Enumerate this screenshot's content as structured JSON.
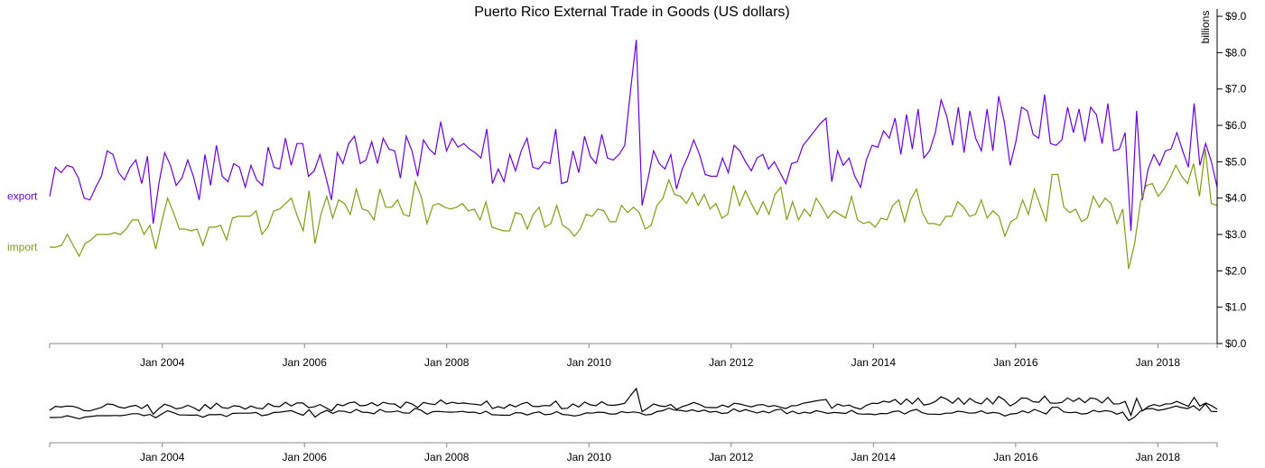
{
  "chart_data": {
    "type": "line",
    "title": "Puerto Rico External Trade in Goods (US dollars)",
    "y_unit_label": "billions",
    "x_start": "2002-06",
    "x_end": "2018-11",
    "xaxis_ticks": [
      "Jan 2004",
      "Jan 2006",
      "Jan 2008",
      "Jan 2010",
      "Jan 2012",
      "Jan 2014",
      "Jan 2016",
      "Jan 2018"
    ],
    "yaxis_ticks": [
      "$0.0",
      "$1.0",
      "$2.0",
      "$3.0",
      "$4.0",
      "$5.0",
      "$6.0",
      "$7.0",
      "$8.0",
      "$9.0"
    ],
    "ylim": [
      0,
      9.2
    ],
    "colors": {
      "export": "#6a00e8",
      "import": "#7e9f14",
      "overview": "#000000"
    },
    "series": [
      {
        "name": "export",
        "values": [
          4.05,
          4.85,
          4.7,
          4.9,
          4.85,
          4.55,
          4.0,
          3.95,
          4.3,
          4.6,
          5.3,
          5.2,
          4.7,
          4.5,
          4.85,
          5.05,
          4.4,
          5.15,
          3.3,
          4.4,
          5.25,
          4.9,
          4.35,
          4.55,
          5.05,
          4.6,
          3.95,
          5.2,
          4.35,
          5.45,
          4.6,
          4.45,
          4.95,
          4.85,
          4.3,
          4.9,
          4.5,
          4.35,
          5.4,
          4.85,
          4.8,
          5.65,
          4.9,
          5.5,
          5.5,
          4.6,
          4.75,
          5.2,
          4.6,
          3.95,
          5.25,
          4.95,
          5.5,
          5.7,
          4.95,
          5.05,
          5.55,
          4.95,
          5.65,
          5.35,
          5.3,
          4.55,
          5.7,
          5.3,
          4.6,
          5.6,
          5.35,
          5.2,
          6.1,
          5.3,
          5.65,
          5.4,
          5.5,
          5.35,
          5.25,
          5.1,
          5.9,
          4.4,
          4.8,
          4.45,
          5.2,
          4.75,
          5.3,
          5.65,
          4.85,
          4.8,
          5.0,
          4.95,
          5.9,
          4.4,
          4.45,
          5.3,
          4.7,
          5.7,
          5.15,
          4.95,
          5.75,
          5.1,
          5.05,
          5.2,
          5.45,
          6.95,
          8.35,
          3.8,
          4.5,
          5.3,
          4.95,
          4.8,
          5.2,
          4.25,
          4.8,
          5.15,
          5.6,
          5.2,
          4.65,
          4.6,
          4.6,
          5.1,
          4.7,
          5.45,
          5.3,
          5.0,
          4.75,
          5.1,
          5.2,
          4.8,
          5.0,
          4.7,
          4.4,
          4.95,
          5.0,
          5.45,
          5.65,
          5.85,
          6.05,
          6.2,
          4.45,
          5.3,
          4.9,
          5.1,
          4.6,
          4.3,
          5.05,
          5.45,
          5.4,
          5.85,
          5.65,
          6.2,
          5.2,
          6.3,
          5.35,
          6.45,
          5.1,
          5.3,
          5.8,
          6.7,
          6.25,
          5.45,
          6.5,
          5.25,
          6.4,
          5.65,
          5.3,
          6.45,
          5.3,
          6.8,
          6.1,
          4.9,
          5.55,
          6.5,
          6.4,
          5.75,
          5.65,
          6.85,
          5.5,
          5.45,
          5.6,
          6.5,
          5.8,
          6.45,
          5.55,
          6.5,
          6.3,
          5.5,
          6.6,
          5.3,
          5.35,
          5.8,
          3.1,
          6.4,
          3.95,
          4.8,
          5.2,
          4.9,
          5.3,
          5.35,
          5.8,
          5.3,
          4.85,
          6.6,
          4.9,
          5.5,
          5.0,
          4.3
        ]
      },
      {
        "name": "import",
        "values": [
          2.65,
          2.65,
          2.7,
          3.0,
          2.7,
          2.4,
          2.75,
          2.85,
          3.0,
          3.0,
          3.0,
          3.05,
          3.0,
          3.15,
          3.4,
          3.4,
          3.0,
          3.25,
          2.6,
          3.35,
          4.0,
          3.6,
          3.15,
          3.15,
          3.1,
          3.15,
          2.7,
          3.2,
          3.2,
          3.25,
          2.85,
          3.45,
          3.5,
          3.5,
          3.5,
          3.65,
          3.0,
          3.2,
          3.65,
          3.7,
          3.85,
          4.0,
          3.5,
          3.1,
          4.2,
          2.75,
          3.55,
          4.05,
          3.45,
          3.95,
          3.85,
          3.55,
          4.25,
          3.7,
          3.65,
          3.4,
          4.25,
          3.75,
          3.75,
          3.95,
          3.55,
          3.5,
          4.45,
          4.05,
          3.3,
          3.8,
          3.85,
          3.75,
          3.7,
          3.75,
          3.85,
          3.65,
          3.7,
          3.4,
          3.9,
          3.2,
          3.15,
          3.1,
          3.1,
          3.6,
          3.55,
          3.15,
          3.55,
          3.75,
          3.2,
          3.3,
          3.8,
          3.25,
          3.15,
          2.95,
          3.15,
          3.55,
          3.5,
          3.7,
          3.65,
          3.35,
          3.35,
          3.8,
          3.6,
          3.75,
          3.6,
          3.15,
          3.25,
          3.8,
          4.0,
          4.5,
          4.1,
          4.05,
          3.85,
          4.15,
          3.8,
          4.1,
          3.7,
          3.85,
          3.45,
          3.55,
          4.35,
          3.8,
          4.2,
          3.85,
          3.55,
          3.9,
          3.55,
          4.1,
          4.3,
          3.4,
          3.9,
          3.4,
          3.7,
          3.5,
          4.0,
          3.75,
          3.45,
          3.65,
          3.55,
          3.45,
          4.05,
          3.4,
          3.3,
          3.35,
          3.2,
          3.45,
          3.4,
          3.8,
          3.95,
          3.35,
          3.95,
          4.25,
          3.6,
          3.3,
          3.3,
          3.25,
          3.5,
          3.5,
          3.9,
          3.75,
          3.5,
          3.55,
          3.95,
          3.45,
          3.65,
          3.5,
          2.95,
          3.35,
          3.45,
          3.95,
          3.55,
          4.25,
          3.8,
          3.35,
          4.65,
          4.65,
          3.75,
          3.6,
          3.7,
          3.35,
          3.45,
          4.05,
          3.75,
          4.0,
          3.85,
          3.3,
          3.7,
          2.05,
          2.75,
          3.9,
          4.35,
          4.4,
          4.05,
          4.25,
          4.55,
          4.9,
          4.6,
          4.4,
          4.95,
          4.05,
          5.35,
          3.85,
          3.8
        ]
      }
    ]
  }
}
